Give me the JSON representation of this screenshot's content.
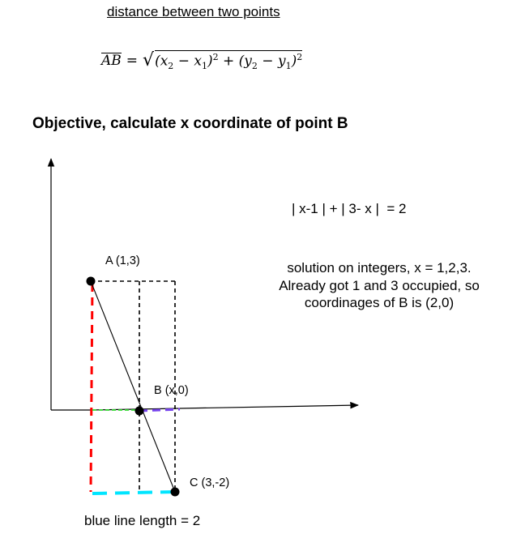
{
  "title": "distance between two points",
  "formula": {
    "lhs": "AB",
    "eq": "=",
    "radical": "√",
    "open1": "(",
    "x2": "x",
    "x2_sub": "2",
    "minus1": " − ",
    "x1": "x",
    "x1_sub": "1",
    "close1": ")",
    "sq1": "2",
    "plus": " + ",
    "open2": "(",
    "y2": "y",
    "y2_sub": "2",
    "minus2": " − ",
    "y1": "y",
    "y1_sub": "1",
    "close2": ")",
    "sq2": "2"
  },
  "objective": "Objective, calculate x coordinate of point B",
  "equation": "| x-1 | + | 3- x |  = 2",
  "solution": {
    "line1": "solution on integers, x = 1,2,3.",
    "line2": "Already got 1 and 3 occupied, so",
    "line3": "coordinages of B is (2,0)"
  },
  "points": {
    "a_label": "A (1,3)",
    "b_label": "B (x,0)",
    "c_label": "C (3,-2)"
  },
  "caption": "blue line length = 2",
  "colors": {
    "red_dash": "#ff0000",
    "green_dash": "#33dd33",
    "purple_dash": "#7744ee",
    "cyan_dash": "#00e5ff",
    "black": "#000000"
  }
}
